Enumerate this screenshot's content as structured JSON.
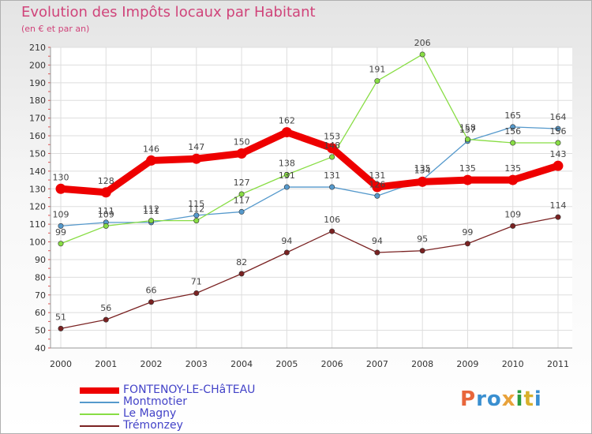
{
  "title": "Evolution des Impôts locaux par Habitant",
  "subtitle": "(en € et par an)",
  "logo_text": "Proxiti",
  "chart_data": {
    "type": "line",
    "title": "Evolution des Impôts locaux par Habitant",
    "subtitle": "(en € et par an)",
    "xlabel": "",
    "ylabel": "",
    "categories": [
      "2000",
      "2001",
      "2002",
      "2003",
      "2004",
      "2005",
      "2006",
      "2007",
      "2008",
      "2009",
      "2010",
      "2011"
    ],
    "y_ticks": [
      40,
      50,
      60,
      70,
      80,
      90,
      100,
      110,
      120,
      130,
      140,
      150,
      160,
      170,
      180,
      190,
      200,
      210
    ],
    "ylim": [
      40,
      210
    ],
    "grid": true,
    "legend_position": "bottom-left",
    "series": [
      {
        "name": "FONTENOY-LE-CHâTEAU",
        "color": "#ee0000",
        "values": [
          130,
          128,
          146,
          147,
          150,
          162,
          153,
          131,
          134,
          135,
          135,
          143
        ]
      },
      {
        "name": "Montmotier",
        "color": "#5599cc",
        "values": [
          109,
          111,
          111,
          115,
          117,
          131,
          131,
          126,
          135,
          157,
          165,
          164
        ]
      },
      {
        "name": "Le Magny",
        "color": "#88dd44",
        "values": [
          99,
          109,
          112,
          112,
          127,
          138,
          148,
          191,
          206,
          158,
          156,
          156
        ]
      },
      {
        "name": "Trémonzey",
        "color": "#7a2222",
        "values": [
          51,
          56,
          66,
          71,
          82,
          94,
          106,
          94,
          95,
          99,
          109,
          114
        ]
      }
    ]
  }
}
